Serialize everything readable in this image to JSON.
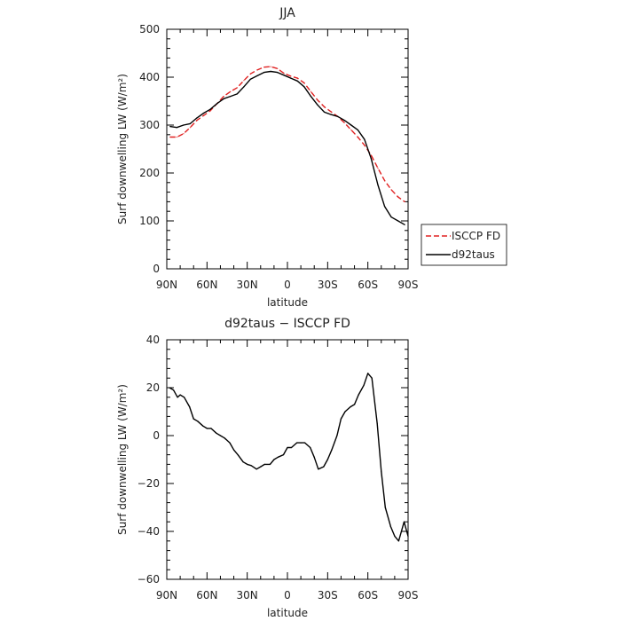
{
  "chart_data": [
    {
      "type": "line",
      "title": "JJA",
      "xlabel": "latitude",
      "ylabel": "Surf downwelling LW (W/m²)",
      "xlim": [
        90,
        -90
      ],
      "ylim": [
        0,
        500
      ],
      "xticks": [
        90,
        60,
        30,
        0,
        -30,
        -60,
        -90
      ],
      "xtick_labels": [
        "90N",
        "60N",
        "30N",
        "0",
        "30S",
        "60S",
        "90S"
      ],
      "yticks": [
        0,
        100,
        200,
        300,
        400,
        500
      ],
      "ytick_labels": [
        "0",
        "100",
        "200",
        "300",
        "400",
        "500"
      ],
      "grid": false,
      "legend_position": "right",
      "series": [
        {
          "name": "ISCCP FD",
          "color": "#e02020",
          "dash": "dashed",
          "x": [
            87.5,
            82.5,
            77.5,
            72.5,
            67.5,
            62.5,
            57.5,
            52.5,
            47.5,
            42.5,
            37.5,
            32.5,
            27.5,
            22.5,
            17.5,
            12.5,
            7.5,
            2.5,
            -2.5,
            -7.5,
            -12.5,
            -17.5,
            -22.5,
            -27.5,
            -32.5,
            -37.5,
            -42.5,
            -47.5,
            -52.5,
            -57.5,
            -62.5,
            -67.5,
            -72.5,
            -77.5,
            -82.5,
            -87.5
          ],
          "values": [
            275,
            275,
            282,
            295,
            310,
            320,
            330,
            345,
            360,
            370,
            378,
            393,
            407,
            415,
            421,
            422,
            418,
            408,
            402,
            398,
            388,
            370,
            352,
            338,
            328,
            318,
            305,
            290,
            275,
            258,
            237,
            210,
            184,
            165,
            150,
            140
          ]
        },
        {
          "name": "d92taus",
          "color": "#000000",
          "dash": "solid",
          "x": [
            87.5,
            82.5,
            77.5,
            72.5,
            67.5,
            62.5,
            57.5,
            52.5,
            47.5,
            42.5,
            37.5,
            32.5,
            27.5,
            22.5,
            17.5,
            12.5,
            7.5,
            2.5,
            -2.5,
            -7.5,
            -12.5,
            -17.5,
            -22.5,
            -27.5,
            -32.5,
            -37.5,
            -42.5,
            -47.5,
            -52.5,
            -57.5,
            -62.5,
            -67.5,
            -72.5,
            -77.5,
            -82.5,
            -87.5
          ],
          "values": [
            297,
            295,
            300,
            303,
            315,
            325,
            333,
            345,
            355,
            360,
            365,
            380,
            396,
            403,
            410,
            412,
            410,
            404,
            398,
            392,
            380,
            360,
            342,
            327,
            322,
            318,
            310,
            300,
            290,
            270,
            230,
            175,
            130,
            108,
            100,
            92
          ]
        }
      ]
    },
    {
      "type": "line",
      "title": "d92taus − ISCCP FD",
      "xlabel": "latitude",
      "ylabel": "Surf downwelling LW (W/m²)",
      "xlim": [
        90,
        -90
      ],
      "ylim": [
        -60,
        40
      ],
      "xticks": [
        90,
        60,
        30,
        0,
        -30,
        -60,
        -90
      ],
      "xtick_labels": [
        "90N",
        "60N",
        "30N",
        "0",
        "30S",
        "60S",
        "90S"
      ],
      "yticks": [
        -60,
        -40,
        -20,
        0,
        20,
        40
      ],
      "ytick_labels": [
        "−60",
        "−40",
        "−20",
        "0",
        "20",
        "40"
      ],
      "grid": false,
      "series": [
        {
          "color": "#000000",
          "dash": "solid",
          "x": [
            88,
            85,
            82,
            80,
            77,
            73,
            70,
            67,
            63,
            60,
            57,
            53,
            50,
            47,
            43,
            40,
            37,
            33,
            30,
            27,
            23,
            20,
            17,
            13,
            10,
            7,
            3,
            0,
            -3,
            -7,
            -10,
            -13,
            -17,
            -20,
            -23,
            -27,
            -30,
            -33,
            -37,
            -40,
            -43,
            -47,
            -50,
            -53,
            -57,
            -60,
            -63,
            -67,
            -70,
            -73,
            -77,
            -80,
            -83,
            -87,
            -90
          ],
          "values": [
            20,
            19,
            16,
            17,
            16,
            12,
            7,
            6,
            4,
            3,
            3,
            1,
            0,
            -1,
            -3,
            -6,
            -8,
            -11,
            -12,
            -12.5,
            -14,
            -13,
            -12,
            -12,
            -10,
            -9,
            -8,
            -5,
            -5,
            -3,
            -3,
            -3,
            -5,
            -9,
            -14,
            -13,
            -10,
            -6,
            0,
            7,
            10,
            12,
            13,
            17,
            21,
            26,
            24,
            5,
            -15,
            -30,
            -38,
            -42,
            -44,
            -36,
            -42
          ]
        }
      ]
    }
  ]
}
